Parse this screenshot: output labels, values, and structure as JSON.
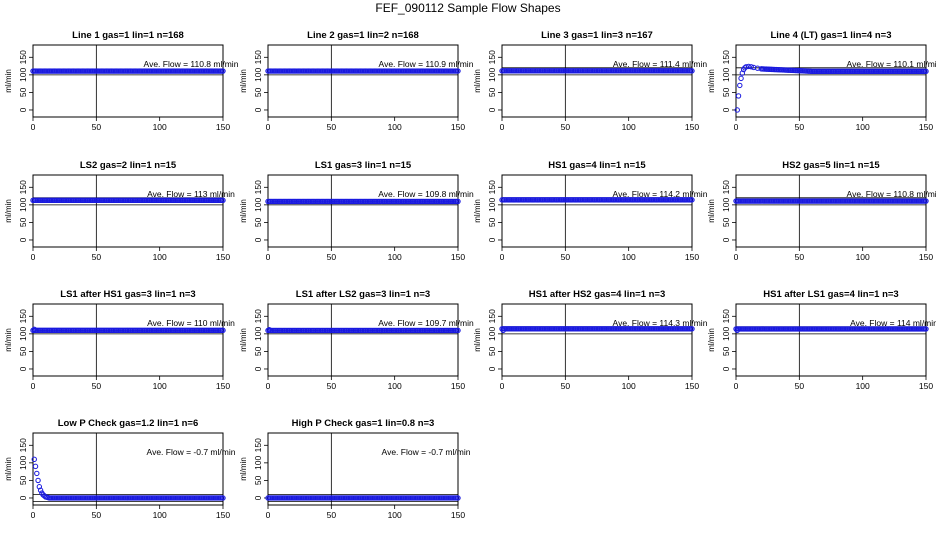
{
  "title": "FEF_090112  Sample Flow Shapes",
  "chart_data": [
    {
      "type": "scatter",
      "title": "Line 1 gas=1 lin=1 n=168",
      "ylabel": "ml/min",
      "annotation": "Ave. Flow =  110.8  ml/min",
      "xlim": [
        0,
        150
      ],
      "ylim": [
        -20,
        185
      ],
      "xticks": [
        0,
        50,
        100,
        150
      ],
      "yticks": [
        0,
        50,
        100,
        150
      ],
      "hlines": [
        100
      ],
      "vline": 50,
      "shape": "flat",
      "level": 110.8
    },
    {
      "type": "scatter",
      "title": "Line 2 gas=1 lin=2 n=168",
      "ylabel": "ml/min",
      "annotation": "Ave. Flow =  110.9  ml/min",
      "xlim": [
        0,
        150
      ],
      "ylim": [
        -20,
        185
      ],
      "xticks": [
        0,
        50,
        100,
        150
      ],
      "yticks": [
        0,
        50,
        100,
        150
      ],
      "hlines": [
        100
      ],
      "vline": 50,
      "shape": "flat",
      "level": 110.9
    },
    {
      "type": "scatter",
      "title": "Line 3 gas=1 lin=3 n=167",
      "ylabel": "ml/min",
      "annotation": "Ave. Flow =  111.4  ml/min",
      "xlim": [
        0,
        150
      ],
      "ylim": [
        -20,
        185
      ],
      "xticks": [
        0,
        50,
        100,
        150
      ],
      "yticks": [
        0,
        50,
        100,
        150
      ],
      "hlines": [
        100,
        120
      ],
      "vline": 50,
      "shape": "flat",
      "level": 111.4
    },
    {
      "type": "scatter",
      "title": "Line 4 (LT) gas=1 lin=4 n=3",
      "ylabel": "ml/min",
      "annotation": "Ave. Flow =  110.1  ml/min",
      "xlim": [
        0,
        150
      ],
      "ylim": [
        -20,
        185
      ],
      "xticks": [
        0,
        50,
        100,
        150
      ],
      "yticks": [
        0,
        50,
        100,
        150
      ],
      "hlines": [
        100,
        120
      ],
      "vline": 50,
      "shape": "ramp",
      "level": 110.1,
      "points": [
        [
          1,
          0
        ],
        [
          2,
          40
        ],
        [
          3,
          70
        ],
        [
          4,
          90
        ],
        [
          5,
          105
        ],
        [
          6,
          115
        ],
        [
          7,
          120
        ],
        [
          8,
          123
        ],
        [
          10,
          124
        ],
        [
          12,
          123
        ],
        [
          14,
          121
        ],
        [
          17,
          119
        ],
        [
          20,
          117
        ]
      ]
    },
    {
      "type": "scatter",
      "title": "LS2 gas=2 lin=1 n=15",
      "ylabel": "ml/min",
      "annotation": "Ave. Flow =  113  ml/min",
      "xlim": [
        0,
        150
      ],
      "ylim": [
        -20,
        185
      ],
      "xticks": [
        0,
        50,
        100,
        150
      ],
      "yticks": [
        0,
        50,
        100,
        150
      ],
      "hlines": [
        100,
        120
      ],
      "vline": 50,
      "shape": "flat",
      "level": 113
    },
    {
      "type": "scatter",
      "title": "LS1 gas=3 lin=1 n=15",
      "ylabel": "ml/min",
      "annotation": "Ave. Flow =  109.8  ml/min",
      "xlim": [
        0,
        150
      ],
      "ylim": [
        -20,
        185
      ],
      "xticks": [
        0,
        50,
        100,
        150
      ],
      "yticks": [
        0,
        50,
        100,
        150
      ],
      "hlines": [
        100
      ],
      "vline": 50,
      "shape": "flat",
      "level": 109.8
    },
    {
      "type": "scatter",
      "title": "HS1 gas=4 lin=1 n=15",
      "ylabel": "ml/min",
      "annotation": "Ave. Flow =  114.2  ml/min",
      "xlim": [
        0,
        150
      ],
      "ylim": [
        -20,
        185
      ],
      "xticks": [
        0,
        50,
        100,
        150
      ],
      "yticks": [
        0,
        50,
        100,
        150
      ],
      "hlines": [
        100,
        120
      ],
      "vline": 50,
      "shape": "flat",
      "level": 114.2
    },
    {
      "type": "scatter",
      "title": "HS2 gas=5 lin=1 n=15",
      "ylabel": "ml/min",
      "annotation": "Ave. Flow =  110.8  ml/min",
      "xlim": [
        0,
        150
      ],
      "ylim": [
        -20,
        185
      ],
      "xticks": [
        0,
        50,
        100,
        150
      ],
      "yticks": [
        0,
        50,
        100,
        150
      ],
      "hlines": [
        100,
        120
      ],
      "vline": 50,
      "shape": "flat",
      "level": 110.8
    },
    {
      "type": "scatter",
      "title": "LS1 after HS1 gas=3 lin=1 n=3",
      "ylabel": "ml/min",
      "annotation": "Ave. Flow =  110  ml/min",
      "xlim": [
        0,
        150
      ],
      "ylim": [
        -20,
        185
      ],
      "xticks": [
        0,
        50,
        100,
        150
      ],
      "yticks": [
        0,
        50,
        100,
        150
      ],
      "hlines": [
        100
      ],
      "vline": 50,
      "shape": "flat",
      "level": 110,
      "first": 113
    },
    {
      "type": "scatter",
      "title": "LS1 after LS2 gas=3 lin=1 n=3",
      "ylabel": "ml/min",
      "annotation": "Ave. Flow =  109.7  ml/min",
      "xlim": [
        0,
        150
      ],
      "ylim": [
        -20,
        185
      ],
      "xticks": [
        0,
        50,
        100,
        150
      ],
      "yticks": [
        0,
        50,
        100,
        150
      ],
      "hlines": [
        100
      ],
      "vline": 50,
      "shape": "flat",
      "level": 109.7,
      "first": 112
    },
    {
      "type": "scatter",
      "title": "HS1 after HS2 gas=4 lin=1 n=3",
      "ylabel": "ml/min",
      "annotation": "Ave. Flow =  114.3  ml/min",
      "xlim": [
        0,
        150
      ],
      "ylim": [
        -20,
        185
      ],
      "xticks": [
        0,
        50,
        100,
        150
      ],
      "yticks": [
        0,
        50,
        100,
        150
      ],
      "hlines": [
        100,
        120
      ],
      "vline": 50,
      "shape": "flat",
      "level": 114.3,
      "first": 110
    },
    {
      "type": "scatter",
      "title": "HS1 after LS1 gas=4 lin=1 n=3",
      "ylabel": "ml/min",
      "annotation": "Ave. Flow =  114  ml/min",
      "xlim": [
        0,
        150
      ],
      "ylim": [
        -20,
        185
      ],
      "xticks": [
        0,
        50,
        100,
        150
      ],
      "yticks": [
        0,
        50,
        100,
        150
      ],
      "hlines": [
        100,
        120
      ],
      "vline": 50,
      "shape": "flat",
      "level": 114,
      "first": 110
    },
    {
      "type": "scatter",
      "title": "Low P Check gas=1.2 lin=1 n=6",
      "ylabel": "ml/min",
      "annotation": "Ave. Flow =  -0.7  ml/min",
      "xlim": [
        0,
        150
      ],
      "ylim": [
        -20,
        185
      ],
      "xticks": [
        0,
        50,
        100,
        150
      ],
      "yticks": [
        0,
        50,
        100,
        150
      ],
      "hlines": [
        -10,
        10
      ],
      "vline": 50,
      "shape": "decay",
      "level": 0,
      "points": [
        [
          1,
          110
        ],
        [
          2,
          90
        ],
        [
          3,
          70
        ],
        [
          4,
          50
        ],
        [
          5,
          32
        ],
        [
          6,
          22
        ],
        [
          7,
          14
        ],
        [
          8,
          9
        ],
        [
          9,
          6
        ],
        [
          10,
          3
        ],
        [
          11,
          2
        ],
        [
          12,
          1
        ]
      ]
    },
    {
      "type": "scatter",
      "title": "High P Check gas=1 lin=0.8 n=3",
      "ylabel": "ml/min",
      "annotation": "Ave. Flow =  -0.7  ml/min",
      "xlim": [
        0,
        150
      ],
      "ylim": [
        -20,
        185
      ],
      "xticks": [
        0,
        50,
        100,
        150
      ],
      "yticks": [
        0,
        50,
        100,
        150
      ],
      "hlines": [
        -10,
        10
      ],
      "vline": 50,
      "shape": "flat",
      "level": 0
    }
  ]
}
